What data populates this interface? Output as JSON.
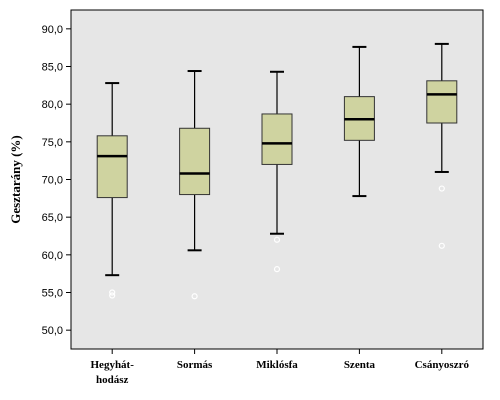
{
  "chart_data": {
    "type": "boxplot",
    "title": "",
    "xlabel": "",
    "ylabel": "Gesztarány (%)",
    "ylim": [
      47.5,
      92.5
    ],
    "yticks": [
      "50,0",
      "55,0",
      "60,0",
      "65,0",
      "70,0",
      "75,0",
      "80,0",
      "85,0",
      "90,0"
    ],
    "ytick_values": [
      50,
      55,
      60,
      65,
      70,
      75,
      80,
      85,
      90
    ],
    "grid": false,
    "colors": {
      "plot_background": "#e6e6e6",
      "box_fill": "#cfd3a0",
      "box_stroke": "#333333",
      "median": "#000000",
      "outlier_stroke": "#ffffff"
    },
    "categories": [
      {
        "label_lines": [
          "Hegyhát-",
          "hodász"
        ],
        "min": 57.3,
        "q1": 67.6,
        "median": 73.1,
        "q3": 75.8,
        "max": 82.8,
        "outliers": [
          55.0,
          54.6
        ]
      },
      {
        "label_lines": [
          "Sormás"
        ],
        "min": 60.6,
        "q1": 68.0,
        "median": 70.8,
        "q3": 76.8,
        "max": 84.4,
        "outliers": [
          54.5
        ]
      },
      {
        "label_lines": [
          "Miklósfa"
        ],
        "min": 62.8,
        "q1": 72.0,
        "median": 74.8,
        "q3": 78.7,
        "max": 84.3,
        "outliers": [
          62.0,
          58.1
        ]
      },
      {
        "label_lines": [
          "Szenta"
        ],
        "min": 67.8,
        "q1": 75.2,
        "median": 78.0,
        "q3": 81.0,
        "max": 87.6,
        "outliers": []
      },
      {
        "label_lines": [
          "Csányoszró"
        ],
        "min": 71.0,
        "q1": 77.5,
        "median": 81.3,
        "q3": 83.1,
        "max": 88.0,
        "outliers": [
          68.8,
          61.2
        ]
      }
    ]
  }
}
